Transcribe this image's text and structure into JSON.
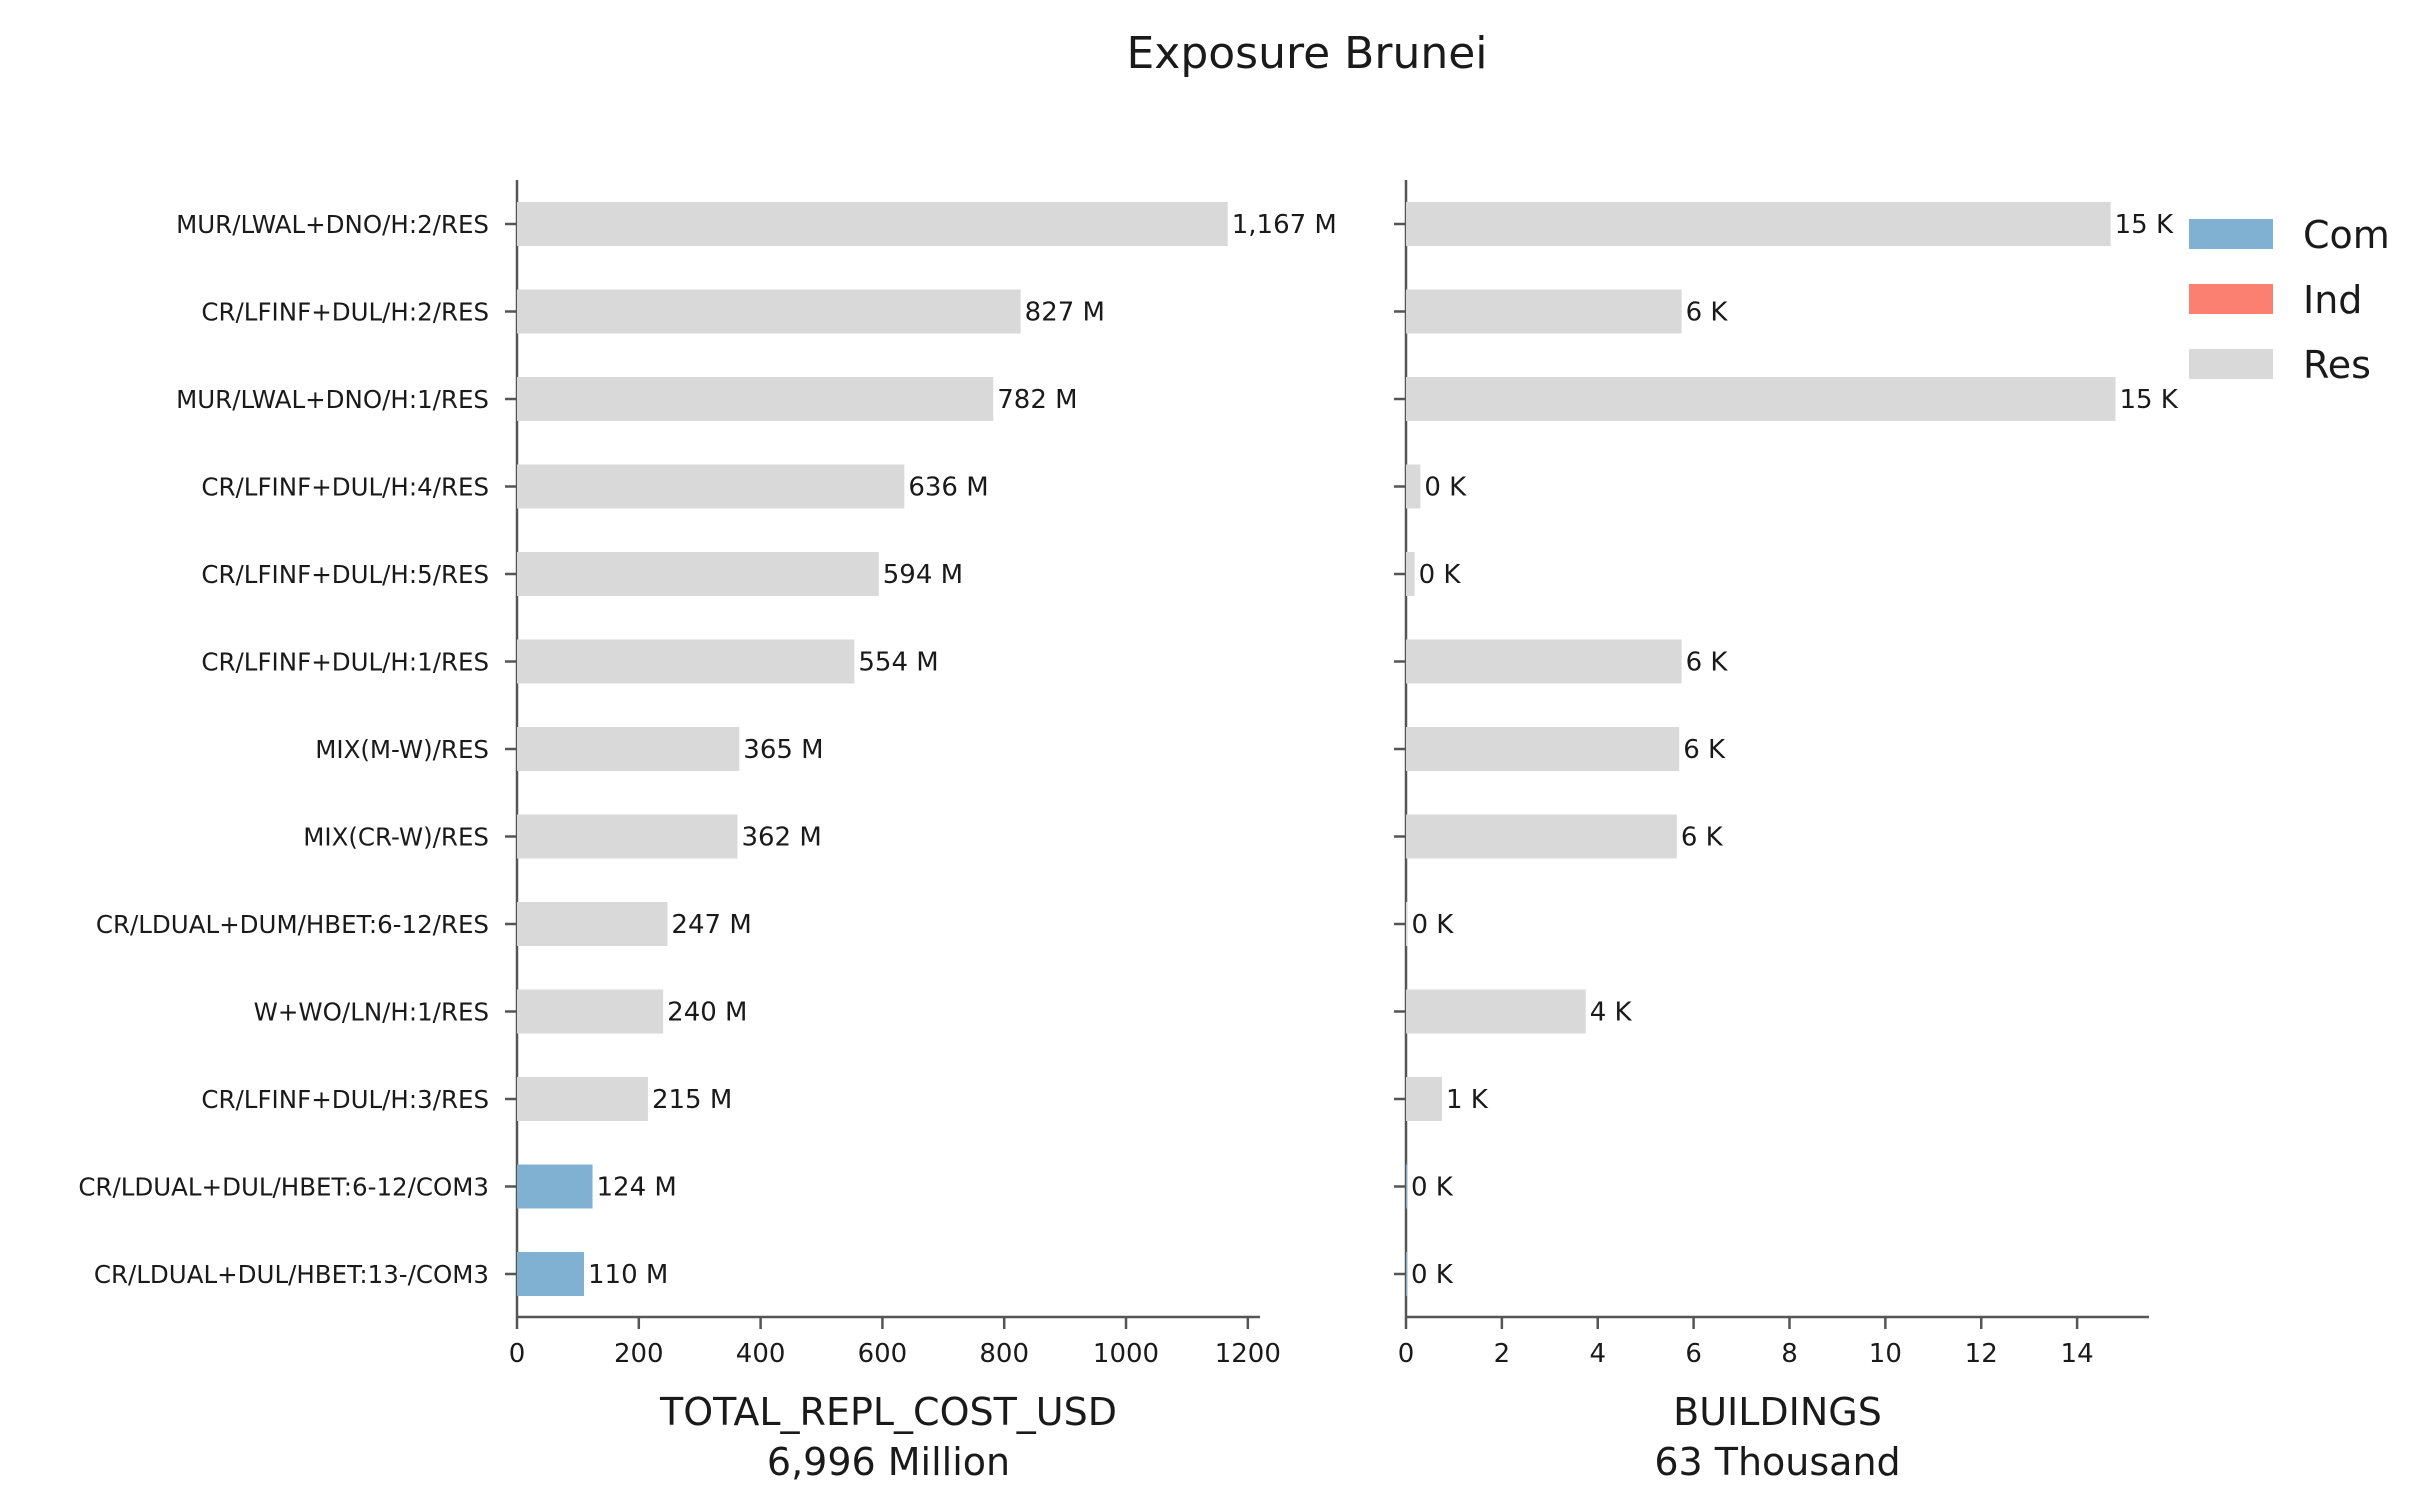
{
  "title": "Exposure Brunei",
  "colors": {
    "Com": "#80b1d3",
    "Ind": "#fb8072",
    "Res": "#d9d9d9"
  },
  "legend": {
    "entries": [
      "Com",
      "Ind",
      "Res"
    ],
    "placement": "top-right"
  },
  "chart_data": [
    {
      "type": "bar",
      "orientation": "horizontal",
      "xlabel": "TOTAL_REPL_COST_USD",
      "xlabel_sub": "6,996 Million",
      "xlim": [
        0,
        1220
      ],
      "xticks": [
        0,
        200,
        400,
        600,
        800,
        1000,
        1200
      ],
      "categories": [
        "MUR/LWAL+DNO/H:2/RES",
        "CR/LFINF+DUL/H:2/RES",
        "MUR/LWAL+DNO/H:1/RES",
        "CR/LFINF+DUL/H:4/RES",
        "CR/LFINF+DUL/H:5/RES",
        "CR/LFINF+DUL/H:1/RES",
        "MIX(M-W)/RES",
        "MIX(CR-W)/RES",
        "CR/LDUAL+DUM/HBET:6-12/RES",
        "W+WO/LN/H:1/RES",
        "CR/LFINF+DUL/H:3/RES",
        "CR/LDUAL+DUL/HBET:6-12/COM3",
        "CR/LDUAL+DUL/HBET:13-/COM3"
      ],
      "occupancy": [
        "Res",
        "Res",
        "Res",
        "Res",
        "Res",
        "Res",
        "Res",
        "Res",
        "Res",
        "Res",
        "Res",
        "Com",
        "Com"
      ],
      "values": [
        1167,
        827,
        782,
        636,
        594,
        554,
        365,
        362,
        247,
        240,
        215,
        124,
        110
      ],
      "value_labels": [
        "1,167 M",
        "827 M",
        "782 M",
        "636 M",
        "594 M",
        "554 M",
        "365 M",
        "362 M",
        "247 M",
        "240 M",
        "215 M",
        "124 M",
        "110 M"
      ]
    },
    {
      "type": "bar",
      "orientation": "horizontal",
      "xlabel": "BUILDINGS",
      "xlabel_sub": "63 Thousand",
      "xlim": [
        0,
        15.5
      ],
      "xticks": [
        0,
        2,
        4,
        6,
        8,
        10,
        12,
        14
      ],
      "occupancy": [
        "Res",
        "Res",
        "Res",
        "Res",
        "Res",
        "Res",
        "Res",
        "Res",
        "Res",
        "Res",
        "Res",
        "Com",
        "Com"
      ],
      "values": [
        14.7,
        5.75,
        14.8,
        0.3,
        0.18,
        5.75,
        5.7,
        5.65,
        0.03,
        3.75,
        0.75,
        0.02,
        0.02
      ],
      "value_labels": [
        "15 K",
        "6 K",
        "15 K",
        "0 K",
        "0 K",
        "6 K",
        "6 K",
        "6 K",
        "0 K",
        "4 K",
        "1 K",
        "0 K",
        "0 K"
      ]
    }
  ]
}
